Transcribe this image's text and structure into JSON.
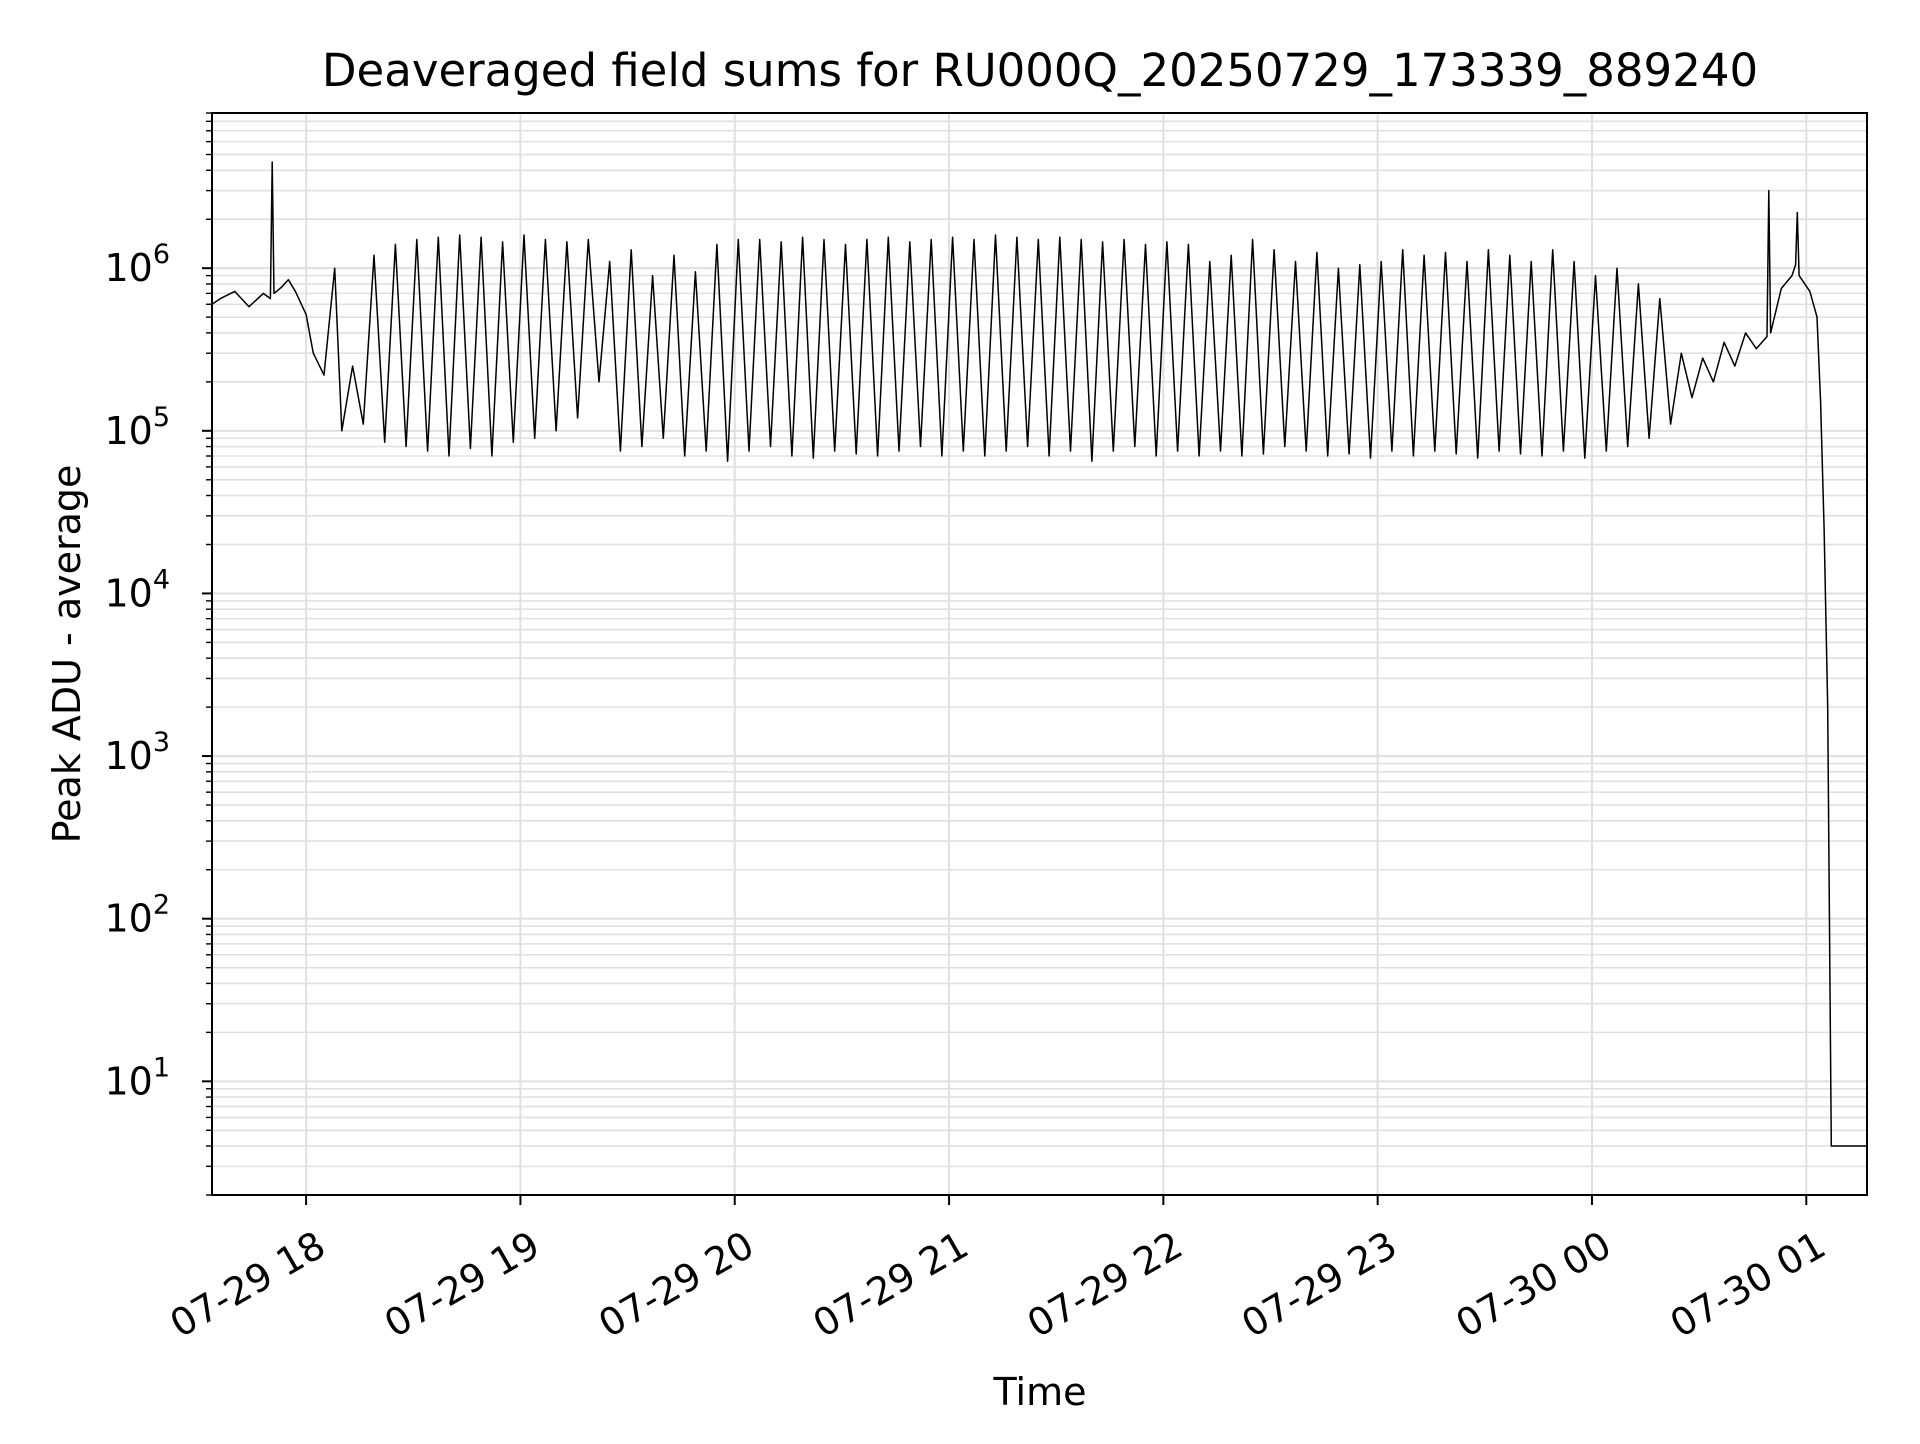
{
  "chart_data": {
    "type": "line",
    "title": "Deaveraged field sums for RU000Q_20250729_173339_889240",
    "xlabel": "Time",
    "ylabel": "Peak ADU - average",
    "yscale": "log",
    "xlim": [
      "2025-07-29T17:33:39",
      "2025-07-30T01:17:00"
    ],
    "ylim": [
      2,
      9000000
    ],
    "grid": true,
    "line_color": "#000000",
    "grid_color": "#e0e0e0",
    "x_ticks": [
      {
        "value": "2025-07-29T18:00:00",
        "label": "07-29 18"
      },
      {
        "value": "2025-07-29T19:00:00",
        "label": "07-29 19"
      },
      {
        "value": "2025-07-29T20:00:00",
        "label": "07-29 20"
      },
      {
        "value": "2025-07-29T21:00:00",
        "label": "07-29 21"
      },
      {
        "value": "2025-07-29T22:00:00",
        "label": "07-29 22"
      },
      {
        "value": "2025-07-29T23:00:00",
        "label": "07-29 23"
      },
      {
        "value": "2025-07-30T00:00:00",
        "label": "07-30 00"
      },
      {
        "value": "2025-07-30T01:00:00",
        "label": "07-30 01"
      }
    ],
    "y_ticks": [
      {
        "value": 10,
        "base": "10",
        "exp": "1"
      },
      {
        "value": 100,
        "base": "10",
        "exp": "2"
      },
      {
        "value": 1000,
        "base": "10",
        "exp": "3"
      },
      {
        "value": 10000,
        "base": "10",
        "exp": "4"
      },
      {
        "value": 100000,
        "base": "10",
        "exp": "5"
      },
      {
        "value": 1000000,
        "base": "10",
        "exp": "6"
      }
    ],
    "series": [
      {
        "x": [
          "2025-07-29T17:33:39",
          "2025-07-29T17:36:00",
          "2025-07-29T17:40:00",
          "2025-07-29T17:44:00",
          "2025-07-29T17:48:00",
          "2025-07-29T17:50:00",
          "2025-07-29T17:50:30",
          "2025-07-29T17:51:00",
          "2025-07-29T17:53:00",
          "2025-07-29T17:55:00",
          "2025-07-29T17:57:00",
          "2025-07-29T18:00:00",
          "2025-07-29T18:02:00",
          "2025-07-29T18:05:00",
          "2025-07-29T18:08:00",
          "2025-07-29T18:10:00",
          "2025-07-29T18:13:00",
          "2025-07-29T18:16:00",
          "2025-07-29T18:19:00",
          "2025-07-29T18:22:00",
          "2025-07-29T18:25:00",
          "2025-07-29T18:28:00",
          "2025-07-29T18:31:00",
          "2025-07-29T18:34:00",
          "2025-07-29T18:37:00",
          "2025-07-29T18:40:00",
          "2025-07-29T18:43:00",
          "2025-07-29T18:46:00",
          "2025-07-29T18:49:00",
          "2025-07-29T18:52:00",
          "2025-07-29T18:55:00",
          "2025-07-29T18:58:00",
          "2025-07-29T19:01:00",
          "2025-07-29T19:04:00",
          "2025-07-29T19:07:00",
          "2025-07-29T19:10:00",
          "2025-07-29T19:13:00",
          "2025-07-29T19:16:00",
          "2025-07-29T19:19:00",
          "2025-07-29T19:22:00",
          "2025-07-29T19:25:00",
          "2025-07-29T19:28:00",
          "2025-07-29T19:31:00",
          "2025-07-29T19:34:00",
          "2025-07-29T19:37:00",
          "2025-07-29T19:40:00",
          "2025-07-29T19:43:00",
          "2025-07-29T19:46:00",
          "2025-07-29T19:49:00",
          "2025-07-29T19:52:00",
          "2025-07-29T19:55:00",
          "2025-07-29T19:58:00",
          "2025-07-29T20:01:00",
          "2025-07-29T20:04:00",
          "2025-07-29T20:07:00",
          "2025-07-29T20:10:00",
          "2025-07-29T20:13:00",
          "2025-07-29T20:16:00",
          "2025-07-29T20:19:00",
          "2025-07-29T20:22:00",
          "2025-07-29T20:25:00",
          "2025-07-29T20:28:00",
          "2025-07-29T20:31:00",
          "2025-07-29T20:34:00",
          "2025-07-29T20:37:00",
          "2025-07-29T20:40:00",
          "2025-07-29T20:43:00",
          "2025-07-29T20:46:00",
          "2025-07-29T20:49:00",
          "2025-07-29T20:52:00",
          "2025-07-29T20:55:00",
          "2025-07-29T20:58:00",
          "2025-07-29T21:01:00",
          "2025-07-29T21:04:00",
          "2025-07-29T21:07:00",
          "2025-07-29T21:10:00",
          "2025-07-29T21:13:00",
          "2025-07-29T21:16:00",
          "2025-07-29T21:19:00",
          "2025-07-29T21:22:00",
          "2025-07-29T21:25:00",
          "2025-07-29T21:28:00",
          "2025-07-29T21:31:00",
          "2025-07-29T21:34:00",
          "2025-07-29T21:37:00",
          "2025-07-29T21:40:00",
          "2025-07-29T21:43:00",
          "2025-07-29T21:46:00",
          "2025-07-29T21:49:00",
          "2025-07-29T21:52:00",
          "2025-07-29T21:55:00",
          "2025-07-29T21:58:00",
          "2025-07-29T22:01:00",
          "2025-07-29T22:04:00",
          "2025-07-29T22:07:00",
          "2025-07-29T22:10:00",
          "2025-07-29T22:13:00",
          "2025-07-29T22:16:00",
          "2025-07-29T22:19:00",
          "2025-07-29T22:22:00",
          "2025-07-29T22:25:00",
          "2025-07-29T22:28:00",
          "2025-07-29T22:31:00",
          "2025-07-29T22:34:00",
          "2025-07-29T22:37:00",
          "2025-07-29T22:40:00",
          "2025-07-29T22:43:00",
          "2025-07-29T22:46:00",
          "2025-07-29T22:49:00",
          "2025-07-29T22:52:00",
          "2025-07-29T22:55:00",
          "2025-07-29T22:58:00",
          "2025-07-29T23:01:00",
          "2025-07-29T23:04:00",
          "2025-07-29T23:07:00",
          "2025-07-29T23:10:00",
          "2025-07-29T23:13:00",
          "2025-07-29T23:16:00",
          "2025-07-29T23:19:00",
          "2025-07-29T23:22:00",
          "2025-07-29T23:25:00",
          "2025-07-29T23:28:00",
          "2025-07-29T23:31:00",
          "2025-07-29T23:34:00",
          "2025-07-29T23:37:00",
          "2025-07-29T23:40:00",
          "2025-07-29T23:43:00",
          "2025-07-29T23:46:00",
          "2025-07-29T23:49:00",
          "2025-07-29T23:52:00",
          "2025-07-29T23:55:00",
          "2025-07-29T23:58:00",
          "2025-07-30T00:01:00",
          "2025-07-30T00:04:00",
          "2025-07-30T00:07:00",
          "2025-07-30T00:10:00",
          "2025-07-30T00:13:00",
          "2025-07-30T00:16:00",
          "2025-07-30T00:19:00",
          "2025-07-30T00:22:00",
          "2025-07-30T00:25:00",
          "2025-07-30T00:28:00",
          "2025-07-30T00:31:00",
          "2025-07-30T00:34:00",
          "2025-07-30T00:37:00",
          "2025-07-30T00:40:00",
          "2025-07-30T00:43:00",
          "2025-07-30T00:46:00",
          "2025-07-30T00:49:00",
          "2025-07-30T00:49:30",
          "2025-07-30T00:50:00",
          "2025-07-30T00:53:00",
          "2025-07-30T00:56:00",
          "2025-07-30T00:57:00",
          "2025-07-30T00:57:30",
          "2025-07-30T00:58:00",
          "2025-07-30T01:01:00",
          "2025-07-30T01:03:00",
          "2025-07-30T01:04:00",
          "2025-07-30T01:05:00",
          "2025-07-30T01:06:00",
          "2025-07-30T01:07:00",
          "2025-07-30T01:08:00",
          "2025-07-30T01:10:00",
          "2025-07-30T01:13:00",
          "2025-07-30T01:17:00"
        ],
        "y": [
          600000,
          650000,
          720000,
          580000,
          700000,
          650000,
          4500000,
          700000,
          760000,
          850000,
          720000,
          520000,
          300000,
          220000,
          1000000,
          100000,
          250000,
          110000,
          1200000,
          85000,
          1400000,
          80000,
          1500000,
          75000,
          1550000,
          70000,
          1600000,
          78000,
          1550000,
          70000,
          1450000,
          85000,
          1600000,
          90000,
          1500000,
          100000,
          1450000,
          120000,
          1500000,
          200000,
          1100000,
          75000,
          1300000,
          80000,
          900000,
          90000,
          1200000,
          70000,
          950000,
          75000,
          1400000,
          65000,
          1500000,
          75000,
          1500000,
          80000,
          1450000,
          70000,
          1550000,
          68000,
          1500000,
          75000,
          1400000,
          72000,
          1500000,
          70000,
          1550000,
          75000,
          1450000,
          80000,
          1500000,
          70000,
          1550000,
          75000,
          1500000,
          70000,
          1600000,
          75000,
          1550000,
          80000,
          1500000,
          70000,
          1550000,
          75000,
          1500000,
          65000,
          1450000,
          75000,
          1500000,
          80000,
          1400000,
          70000,
          1450000,
          75000,
          1400000,
          70000,
          1100000,
          75000,
          1200000,
          70000,
          1500000,
          72000,
          1300000,
          80000,
          1100000,
          75000,
          1250000,
          70000,
          1000000,
          72000,
          1050000,
          68000,
          1100000,
          75000,
          1300000,
          70000,
          1200000,
          75000,
          1250000,
          72000,
          1100000,
          68000,
          1300000,
          75000,
          1200000,
          72000,
          1100000,
          70000,
          1300000,
          75000,
          1100000,
          68000,
          900000,
          75000,
          1000000,
          80000,
          800000,
          90000,
          650000,
          110000,
          300000,
          160000,
          280000,
          200000,
          350000,
          250000,
          400000,
          320000,
          380000,
          3000000,
          400000,
          750000,
          900000,
          1050000,
          2200000,
          900000,
          720000,
          500000,
          150000,
          25000,
          2000,
          4,
          4,
          4,
          4,
          4
        ]
      }
    ]
  }
}
